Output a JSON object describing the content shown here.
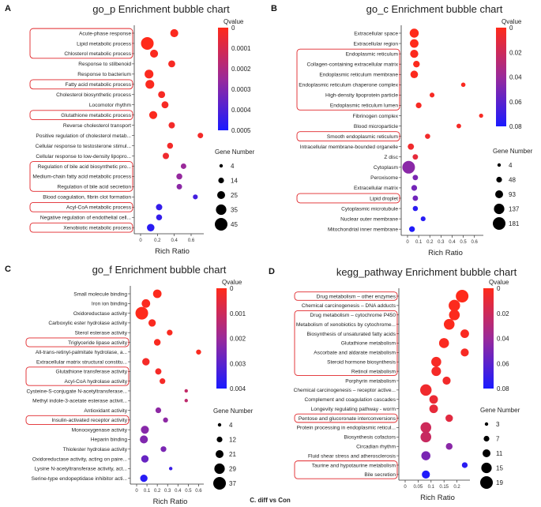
{
  "footer": "C. diff vs Con",
  "colors": {
    "high": "#ff2a1a",
    "mid": "#7a2aa8",
    "low": "#1a1aff",
    "box": "#e0262a"
  },
  "chart_data": [
    {
      "type": "scatter",
      "panel_letter": "A",
      "title": "go_p Enrichment bubble chart",
      "xlabel": "Rich Ratio",
      "xlim": [
        0,
        0.75
      ],
      "xticks": [
        "0",
        "0.2",
        "0.4",
        "0.6"
      ],
      "qvalue_title": "Qvalue",
      "qvalue_range": [
        0,
        0.0005
      ],
      "qvalue_ticks": [
        "0",
        "0.0001",
        "0.0002",
        "0.0003",
        "0.0004",
        "0.0005"
      ],
      "size_title": "Gene Number",
      "size_range": [
        4,
        45
      ],
      "size_ticks": [
        "4",
        "14",
        "25",
        "35",
        "45"
      ],
      "points": [
        {
          "term": "Acute-phase response",
          "x": 0.4,
          "size": 14,
          "q": 1e-05,
          "boxed": true
        },
        {
          "term": "Lipid metabolic process",
          "x": 0.08,
          "size": 45,
          "q": 0.0,
          "boxed": true
        },
        {
          "term": "Chlosterol metabolic process",
          "x": 0.16,
          "size": 14,
          "q": 1e-05,
          "boxed": true
        },
        {
          "term": "Response to stilbenoid",
          "x": 0.37,
          "size": 10,
          "q": 2e-05,
          "boxed": false
        },
        {
          "term": "Response to bacterium",
          "x": 0.1,
          "size": 18,
          "q": 1e-05,
          "boxed": false
        },
        {
          "term": "Fatty acid metabolic process",
          "x": 0.11,
          "size": 18,
          "q": 1e-05,
          "boxed": true
        },
        {
          "term": "Cholesterol biosynthetic process",
          "x": 0.25,
          "size": 10,
          "q": 2e-05,
          "boxed": false
        },
        {
          "term": "Locomotor rhythm",
          "x": 0.29,
          "size": 10,
          "q": 2e-05,
          "boxed": false
        },
        {
          "term": "Glutathione metabolic process",
          "x": 0.15,
          "size": 14,
          "q": 1e-05,
          "boxed": true
        },
        {
          "term": "Reverse cholesterol transport",
          "x": 0.37,
          "size": 8,
          "q": 3e-05,
          "boxed": false
        },
        {
          "term": "Positive regulation of cholesterol metab...",
          "x": 0.71,
          "size": 6,
          "q": 3e-05,
          "boxed": false
        },
        {
          "term": "Cellular response to testosterone stimul...",
          "x": 0.35,
          "size": 7,
          "q": 3e-05,
          "boxed": false
        },
        {
          "term": "Cellular response to low-density lipopro...",
          "x": 0.3,
          "size": 8,
          "q": 4e-05,
          "boxed": false
        },
        {
          "term": "Regulation of bile acid biosynthetic pro...",
          "x": 0.51,
          "size": 6,
          "q": 0.00025,
          "boxed": true
        },
        {
          "term": "Medium-chain fatty acid metabolic process",
          "x": 0.46,
          "size": 7,
          "q": 0.00026,
          "boxed": true
        },
        {
          "term": "Regulation of bile acid secretion",
          "x": 0.46,
          "size": 6,
          "q": 0.00028,
          "boxed": true
        },
        {
          "term": "Blood coagulation, fibrin clot formation",
          "x": 0.65,
          "size": 5,
          "q": 0.00042,
          "boxed": false
        },
        {
          "term": "Acyl-CoA metabolic process",
          "x": 0.22,
          "size": 8,
          "q": 0.00045,
          "boxed": true
        },
        {
          "term": "Negative regulation of endothelial cell...",
          "x": 0.22,
          "size": 7,
          "q": 0.00045,
          "boxed": false
        },
        {
          "term": "Xenobiotic metabolic process",
          "x": 0.12,
          "size": 12,
          "q": 0.00047,
          "boxed": true
        }
      ]
    },
    {
      "type": "scatter",
      "panel_letter": "B",
      "title": "go_c Enrichment bubble chart",
      "xlabel": "Rich Ratio",
      "xlim": [
        0,
        0.68
      ],
      "xticks": [
        "0",
        "0.1",
        "0.2",
        "0.3",
        "0.4",
        "0.5",
        "0.6"
      ],
      "qvalue_title": "Qvalue",
      "qvalue_range": [
        0,
        0.08
      ],
      "qvalue_ticks": [
        "0",
        "0.02",
        "0.04",
        "0.06",
        "0.08"
      ],
      "size_title": "Gene Number",
      "size_range": [
        4,
        181
      ],
      "size_ticks": [
        "4",
        "48",
        "93",
        "137",
        "181"
      ],
      "points": [
        {
          "term": "Extracellular space",
          "x": 0.06,
          "size": 70,
          "q": 0.0,
          "boxed": false
        },
        {
          "term": "Extracellular region",
          "x": 0.06,
          "size": 60,
          "q": 0.0,
          "boxed": false
        },
        {
          "term": "Endoplasmic reticulum",
          "x": 0.06,
          "size": 50,
          "q": 0.001,
          "boxed": true
        },
        {
          "term": "Collagen-containing extracellular matrix",
          "x": 0.08,
          "size": 25,
          "q": 0.001,
          "boxed": true
        },
        {
          "term": "Endoplasmic reticulum membrane",
          "x": 0.06,
          "size": 40,
          "q": 0.001,
          "boxed": true
        },
        {
          "term": "Endoplasmic reticulum chaperone complex",
          "x": 0.5,
          "size": 6,
          "q": 0.002,
          "boxed": true
        },
        {
          "term": "High-density lipoprotein particle",
          "x": 0.22,
          "size": 8,
          "q": 0.003,
          "boxed": true
        },
        {
          "term": "Endoplasmic reticulum lumen",
          "x": 0.1,
          "size": 15,
          "q": 0.003,
          "boxed": true
        },
        {
          "term": "Fibrinogen complex",
          "x": 0.66,
          "size": 5,
          "q": 0.003,
          "boxed": false
        },
        {
          "term": "Blood microparticle",
          "x": 0.46,
          "size": 7,
          "q": 0.004,
          "boxed": false
        },
        {
          "term": "Smooth endoplasmic reticulum",
          "x": 0.18,
          "size": 10,
          "q": 0.005,
          "boxed": true
        },
        {
          "term": "Intracellular membrane-bounded organelle",
          "x": 0.03,
          "size": 20,
          "q": 0.006,
          "boxed": false
        },
        {
          "term": "Z disc",
          "x": 0.07,
          "size": 12,
          "q": 0.01,
          "boxed": false
        },
        {
          "term": "Cytoplasm",
          "x": 0.01,
          "size": 181,
          "q": 0.045,
          "boxed": false
        },
        {
          "term": "Peroxisome",
          "x": 0.07,
          "size": 12,
          "q": 0.05,
          "boxed": false
        },
        {
          "term": "Extracellular matrix",
          "x": 0.06,
          "size": 15,
          "q": 0.052,
          "boxed": false
        },
        {
          "term": "Lipid droplet",
          "x": 0.07,
          "size": 12,
          "q": 0.053,
          "boxed": true
        },
        {
          "term": "Cytoplasmic microtubule",
          "x": 0.07,
          "size": 10,
          "q": 0.075,
          "boxed": false
        },
        {
          "term": "Nuclear outer membrane",
          "x": 0.14,
          "size": 8,
          "q": 0.076,
          "boxed": false
        },
        {
          "term": "Mitochondrial inner membrane",
          "x": 0.04,
          "size": 15,
          "q": 0.078,
          "boxed": false
        }
      ]
    },
    {
      "type": "scatter",
      "panel_letter": "C",
      "title": "go_f Enrichment bubble chart",
      "xlabel": "Rich Ratio",
      "xlim": [
        0,
        0.65
      ],
      "xticks": [
        "0",
        "0.1",
        "0.2",
        "0.3",
        "0.4",
        "0.5",
        "0.6"
      ],
      "qvalue_title": "Qvalue",
      "qvalue_range": [
        0,
        0.004
      ],
      "qvalue_ticks": [
        "0",
        "0.001",
        "0.002",
        "0.003",
        "0.004"
      ],
      "size_title": "Gene Number",
      "size_range": [
        4,
        37
      ],
      "size_ticks": [
        "4",
        "12",
        "21",
        "29",
        "37"
      ],
      "points": [
        {
          "term": "Small molecule binding",
          "x": 0.2,
          "size": 14,
          "q": 5e-05,
          "boxed": false
        },
        {
          "term": "Iron ion binding",
          "x": 0.09,
          "size": 14,
          "q": 8e-05,
          "boxed": false
        },
        {
          "term": "Oxidoreductase activity",
          "x": 0.05,
          "size": 37,
          "q": 2e-05,
          "boxed": false
        },
        {
          "term": "Carboxylic ester hydrolase activity",
          "x": 0.15,
          "size": 10,
          "q": 0.0001,
          "boxed": false
        },
        {
          "term": "Sterol esterase activity",
          "x": 0.32,
          "size": 6,
          "q": 0.0001,
          "boxed": false
        },
        {
          "term": "Triglyceride lipase activity",
          "x": 0.2,
          "size": 8,
          "q": 0.0001,
          "boxed": true
        },
        {
          "term": "All-trans-retinyl-palmitate hydrolase, a...",
          "x": 0.6,
          "size": 5,
          "q": 0.0001,
          "boxed": false
        },
        {
          "term": "Extracellular matrix structural constitu...",
          "x": 0.09,
          "size": 10,
          "q": 0.0002,
          "boxed": false
        },
        {
          "term": "Glutathione transferase activity",
          "x": 0.21,
          "size": 7,
          "q": 0.0002,
          "boxed": true
        },
        {
          "term": "Acyl-CoA hydrolase activity",
          "x": 0.25,
          "size": 6,
          "q": 0.0002,
          "boxed": true
        },
        {
          "term": "Cysteine-S-conjugate N-acetyltransferase...",
          "x": 0.48,
          "size": 4,
          "q": 0.0012,
          "boxed": false
        },
        {
          "term": "Methyl indole-3-acetate esterase activit...",
          "x": 0.48,
          "size": 4,
          "q": 0.0013,
          "boxed": false
        },
        {
          "term": "Antioxidant activity",
          "x": 0.21,
          "size": 6,
          "q": 0.0022,
          "boxed": false
        },
        {
          "term": "Insulin-activated receptor activity",
          "x": 0.28,
          "size": 5,
          "q": 0.0022,
          "boxed": true
        },
        {
          "term": "Monooxygenase activity",
          "x": 0.08,
          "size": 12,
          "q": 0.0023,
          "boxed": false
        },
        {
          "term": "Heparin binding",
          "x": 0.07,
          "size": 12,
          "q": 0.0024,
          "boxed": false
        },
        {
          "term": "Thiolester hydrolase activity",
          "x": 0.26,
          "size": 6,
          "q": 0.0025,
          "boxed": false
        },
        {
          "term": "Oxidoreductase activity, acting on paire...",
          "x": 0.08,
          "size": 10,
          "q": 0.0028,
          "boxed": false
        },
        {
          "term": "Lysine N-acetyltransferase activity, act...",
          "x": 0.33,
          "size": 4,
          "q": 0.0035,
          "boxed": false
        },
        {
          "term": "Serine-type endopeptidase inhibitor acti...",
          "x": 0.07,
          "size": 10,
          "q": 0.0038,
          "boxed": false
        }
      ]
    },
    {
      "type": "scatter",
      "panel_letter": "D",
      "title": "kegg_pathway Enrichment bubble chart",
      "xlabel": "Rich Ratio",
      "xlim": [
        0,
        0.25
      ],
      "xticks": [
        "0",
        "0.05",
        "0.1",
        "0.15",
        "0.2"
      ],
      "qvalue_title": "Qvalue",
      "qvalue_range": [
        0,
        0.08
      ],
      "qvalue_ticks": [
        "0",
        "0.02",
        "0.04",
        "0.06",
        "0.08"
      ],
      "size_title": "Gene Number",
      "size_range": [
        3,
        19
      ],
      "size_ticks": [
        "3",
        "7",
        "11",
        "15",
        "19"
      ],
      "points": [
        {
          "term": "Drug metabolism – other enzymes",
          "x": 0.22,
          "size": 19,
          "q": 0.0,
          "boxed": true
        },
        {
          "term": "Chemical carcinogenesis – DNA adducts",
          "x": 0.19,
          "size": 15,
          "q": 0.001,
          "boxed": false
        },
        {
          "term": "Drug metabolism – cytochrome P450",
          "x": 0.19,
          "size": 13,
          "q": 0.001,
          "boxed": true
        },
        {
          "term": "Metabolism of xenobiotics by cytochrome...",
          "x": 0.17,
          "size": 13,
          "q": 0.001,
          "boxed": true
        },
        {
          "term": "Biosynthesis of unsaturated fatty acids",
          "x": 0.23,
          "size": 8,
          "q": 0.002,
          "boxed": true
        },
        {
          "term": "Glutathione metabolism",
          "x": 0.15,
          "size": 11,
          "q": 0.002,
          "boxed": true
        },
        {
          "term": "Ascorbate and aldarate metabolism",
          "x": 0.23,
          "size": 7,
          "q": 0.003,
          "boxed": true
        },
        {
          "term": "Steroid hormone biosynthesis",
          "x": 0.12,
          "size": 11,
          "q": 0.003,
          "boxed": true
        },
        {
          "term": "Retinol metabolism",
          "x": 0.12,
          "size": 10,
          "q": 0.004,
          "boxed": true
        },
        {
          "term": "Porphyrin metabolism",
          "x": 0.16,
          "size": 7,
          "q": 0.005,
          "boxed": false
        },
        {
          "term": "Chemical carcinogenesis – receptor active...",
          "x": 0.08,
          "size": 15,
          "q": 0.006,
          "boxed": false
        },
        {
          "term": "Complement and coagulation cascades",
          "x": 0.11,
          "size": 8,
          "q": 0.008,
          "boxed": false
        },
        {
          "term": "Longevity regulating pathway - worm",
          "x": 0.11,
          "size": 8,
          "q": 0.01,
          "boxed": false
        },
        {
          "term": "Pentose and glucoronate interconversions",
          "x": 0.17,
          "size": 6,
          "q": 0.012,
          "boxed": true
        },
        {
          "term": "Protein processing in endoplasmic reticul...",
          "x": 0.08,
          "size": 13,
          "q": 0.02,
          "boxed": false
        },
        {
          "term": "Biosynthesis cofactors",
          "x": 0.08,
          "size": 13,
          "q": 0.022,
          "boxed": false
        },
        {
          "term": "Circadian rhythm",
          "x": 0.17,
          "size": 5,
          "q": 0.045,
          "boxed": false
        },
        {
          "term": "Fluid shear stress and atherosclerosis",
          "x": 0.08,
          "size": 9,
          "q": 0.05,
          "boxed": false
        },
        {
          "term": "Taurine and hypotaurine metabolism",
          "x": 0.23,
          "size": 4,
          "q": 0.075,
          "boxed": true
        },
        {
          "term": "Bile secretion",
          "x": 0.08,
          "size": 7,
          "q": 0.078,
          "boxed": true
        }
      ]
    }
  ]
}
